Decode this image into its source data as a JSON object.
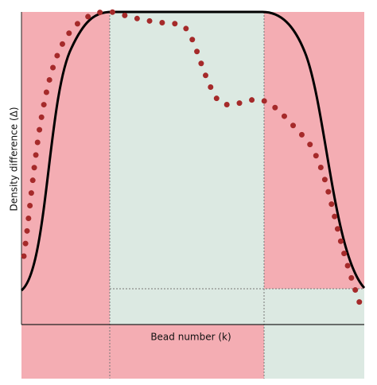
{
  "y_label": "Density difference (Δ)",
  "x_label": "Bead number (k)"
}
